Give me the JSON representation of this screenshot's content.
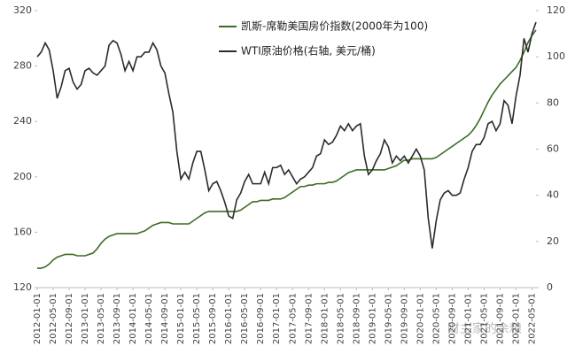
{
  "chart_data": {
    "type": "line",
    "annotation": "财主家的余粮",
    "categories": [
      "2012-01-01",
      null,
      null,
      null,
      "2012-05-01",
      null,
      null,
      null,
      "2012-09-01",
      null,
      null,
      null,
      "2013-01-01",
      null,
      null,
      null,
      "2013-05-01",
      null,
      null,
      null,
      "2013-09-01",
      null,
      null,
      null,
      "2014-01-01",
      null,
      null,
      null,
      "2014-05-01",
      null,
      null,
      null,
      "2014-09-01",
      null,
      null,
      null,
      "2015-01-01",
      null,
      null,
      null,
      "2015-05-01",
      null,
      null,
      null,
      "2015-09-01",
      null,
      null,
      null,
      "2016-01-01",
      null,
      null,
      null,
      "2016-05-01",
      null,
      null,
      null,
      "2016-09-01",
      null,
      null,
      null,
      "2017-01-01",
      null,
      null,
      null,
      "2017-05-01",
      null,
      null,
      null,
      "2017-09-01",
      null,
      null,
      null,
      "2018-01-01",
      null,
      null,
      null,
      "2018-05-01",
      null,
      null,
      null,
      "2018-09-01",
      null,
      null,
      null,
      "2019-01-01",
      null,
      null,
      null,
      "2019-05-01",
      null,
      null,
      null,
      "2019-09-01",
      null,
      null,
      null,
      "2020-01-01",
      null,
      null,
      null,
      "2020-05-01",
      null,
      null,
      null,
      "2020-09-01",
      null,
      null,
      null,
      "2021-01-01",
      null,
      null,
      null,
      "2021-05-01",
      null,
      null,
      null,
      "2021-09-01",
      null,
      null,
      null,
      "2022-01-01",
      null,
      null,
      null,
      "2022-05-01",
      null
    ],
    "series": [
      {
        "name": "凯斯-席勒美国房价指数(2000年为100)",
        "color": "#3d6b22",
        "values": [
          134,
          134,
          135,
          137,
          140,
          142,
          143,
          144,
          144,
          144,
          143,
          143,
          143,
          144,
          145,
          148,
          152,
          155,
          157,
          158,
          159,
          159,
          159,
          159,
          159,
          159,
          160,
          161,
          163,
          165,
          166,
          167,
          167,
          167,
          166,
          166,
          166,
          166,
          166,
          168,
          170,
          172,
          174,
          175,
          175,
          175,
          175,
          175,
          175,
          175,
          175,
          176,
          178,
          180,
          182,
          182,
          183,
          183,
          183,
          184,
          184,
          184,
          185,
          187,
          189,
          191,
          193,
          193,
          194,
          194,
          195,
          195,
          195,
          196,
          196,
          197,
          199,
          201,
          203,
          204,
          205,
          205,
          205,
          205,
          205,
          205,
          205,
          205,
          206,
          207,
          208,
          210,
          212,
          212,
          213,
          213,
          213,
          213,
          213,
          213,
          214,
          216,
          218,
          220,
          222,
          224,
          226,
          228,
          230,
          233,
          237,
          242,
          248,
          254,
          259,
          263,
          267,
          270,
          273,
          276,
          279,
          284,
          290,
          297,
          302,
          306
        ]
      },
      {
        "name": "WTI原油价格(右轴, 美元/桶)",
        "color": "#2b2b2b",
        "axis": "y2",
        "values": [
          100,
          102,
          106,
          103,
          94,
          82,
          87,
          94,
          95,
          89,
          86,
          88,
          94,
          95,
          93,
          92,
          94,
          96,
          105,
          107,
          106,
          101,
          94,
          98,
          94,
          100,
          100,
          102,
          102,
          106,
          103,
          96,
          93,
          84,
          76,
          59,
          47,
          50,
          47,
          54,
          59,
          59,
          51,
          42,
          45,
          46,
          42,
          37,
          31,
          30,
          38,
          41,
          46,
          49,
          45,
          45,
          45,
          50,
          45,
          52,
          52,
          53,
          49,
          51,
          48,
          45,
          47,
          48,
          50,
          52,
          57,
          58,
          64,
          62,
          63,
          66,
          70,
          68,
          71,
          68,
          70,
          71,
          57,
          49,
          51,
          55,
          58,
          64,
          61,
          54,
          57,
          55,
          57,
          54,
          57,
          60,
          57,
          51,
          30,
          17,
          29,
          38,
          41,
          42,
          40,
          40,
          41,
          47,
          52,
          59,
          62,
          62,
          65,
          71,
          72,
          68,
          71,
          81,
          79,
          71,
          83,
          92,
          108,
          102,
          110,
          115
        ]
      }
    ],
    "ylim": [
      120,
      320
    ],
    "yticks": [
      120,
      160,
      200,
      240,
      280,
      320
    ],
    "y2lim": [
      0,
      120
    ],
    "y2ticks": [
      0,
      20,
      40,
      60,
      80,
      100,
      120
    ]
  }
}
